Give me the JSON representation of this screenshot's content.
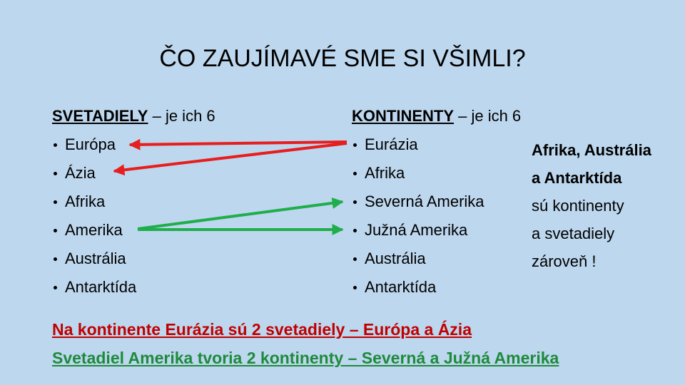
{
  "title": "ČO ZAUJÍMAVÉ SME SI VŠIMLI?",
  "left": {
    "heading_bold": "SVETADIELY",
    "heading_rest": " – je ich 6",
    "items": [
      "Európa",
      "Ázia",
      "Afrika",
      "Amerika",
      "Austrália",
      "Antarktída"
    ]
  },
  "right": {
    "heading_bold": "KONTINENTY",
    "heading_rest": " – je ich 6",
    "items": [
      "Eurázia",
      "Afrika",
      "Severná Amerika",
      "Južná Amerika",
      "Austrália",
      "Antarktída"
    ]
  },
  "note": {
    "bold_lines": [
      "Afrika, Austrália",
      "a Antarktída"
    ],
    "lines": [
      "sú kontinenty",
      "a svetadiely",
      "zároveň !"
    ]
  },
  "conclusions": [
    "Na kontinente Eurázia sú 2 svetadiely – Európa a Ázia",
    "Svetadiel Amerika tvoria 2 kontinenty – Severná a Južná Amerika"
  ]
}
